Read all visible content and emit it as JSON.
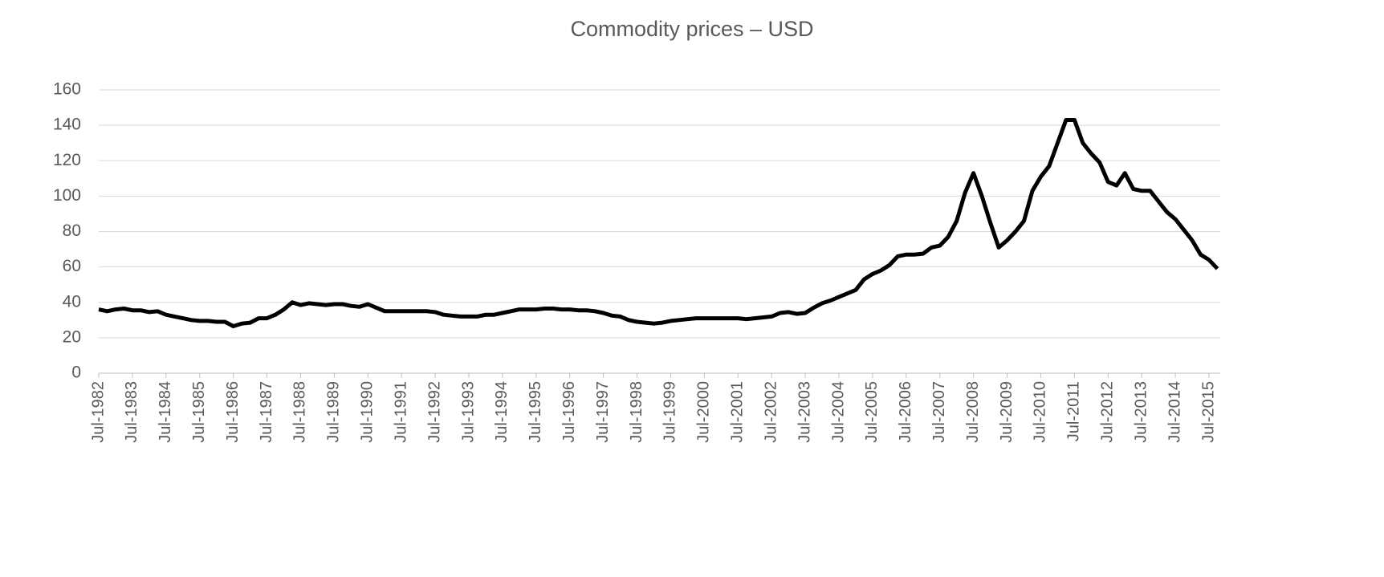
{
  "chart_data": {
    "type": "line",
    "title": "Commodity prices – USD",
    "categories": [
      "Jul-1982",
      null,
      null,
      null,
      "Jul-1983",
      null,
      null,
      null,
      "Jul-1984",
      null,
      null,
      null,
      "Jul-1985",
      null,
      null,
      null,
      "Jul-1986",
      null,
      null,
      null,
      "Jul-1987",
      null,
      null,
      null,
      "Jul-1988",
      null,
      null,
      null,
      "Jul-1989",
      null,
      null,
      null,
      "Jul-1990",
      null,
      null,
      null,
      "Jul-1991",
      null,
      null,
      null,
      "Jul-1992",
      null,
      null,
      null,
      "Jul-1993",
      null,
      null,
      null,
      "Jul-1994",
      null,
      null,
      null,
      "Jul-1995",
      null,
      null,
      null,
      "Jul-1996",
      null,
      null,
      null,
      "Jul-1997",
      null,
      null,
      null,
      "Jul-1998",
      null,
      null,
      null,
      "Jul-1999",
      null,
      null,
      null,
      "Jul-2000",
      null,
      null,
      null,
      "Jul-2001",
      null,
      null,
      null,
      "Jul-2002",
      null,
      null,
      null,
      "Jul-2003",
      null,
      null,
      null,
      "Jul-2004",
      null,
      null,
      null,
      "Jul-2005",
      null,
      null,
      null,
      "Jul-2006",
      null,
      null,
      null,
      "Jul-2007",
      null,
      null,
      null,
      "Jul-2008",
      null,
      null,
      null,
      "Jul-2009",
      null,
      null,
      null,
      "Jul-2010",
      null,
      null,
      null,
      "Jul-2011",
      null,
      null,
      null,
      "Jul-2012",
      null,
      null,
      null,
      "Jul-2013",
      null,
      null,
      null,
      "Jul-2014",
      null,
      null,
      null,
      "Jul-2015",
      null
    ],
    "values": [
      36,
      35,
      36,
      36.5,
      35.5,
      35.5,
      34.5,
      35,
      33,
      32,
      31,
      30,
      29.5,
      29.5,
      29,
      29,
      26.5,
      28,
      28.5,
      31,
      31,
      33,
      36,
      40,
      38.5,
      39.5,
      39,
      38.5,
      39,
      39,
      38,
      37.5,
      39,
      37,
      35,
      35,
      35,
      35,
      35,
      35,
      34.5,
      33,
      32.5,
      32,
      32,
      32,
      33,
      33,
      34,
      35,
      36,
      36,
      36,
      36.5,
      36.5,
      36,
      36,
      35.5,
      35.5,
      35,
      34,
      32.5,
      32,
      30,
      29,
      28.5,
      28,
      28.5,
      29.5,
      30,
      30.5,
      31,
      31,
      31,
      31,
      31,
      31,
      30.5,
      31,
      31.5,
      32,
      34,
      34.5,
      33.5,
      34,
      37,
      39.5,
      41,
      43,
      45,
      47,
      53,
      56,
      58,
      61,
      66,
      67,
      67,
      67.5,
      71,
      72,
      77,
      86,
      102,
      113,
      100,
      85,
      71,
      75,
      80,
      86,
      103,
      111,
      117,
      130,
      143,
      143,
      130,
      124,
      119,
      108,
      106,
      113,
      104,
      103,
      103,
      97,
      91,
      87,
      81,
      75,
      67,
      64,
      59
    ],
    "color": "#000000",
    "ylim": [
      0,
      160
    ],
    "yticks": [
      0,
      20,
      40,
      60,
      80,
      100,
      120,
      140,
      160
    ],
    "grid": true
  }
}
